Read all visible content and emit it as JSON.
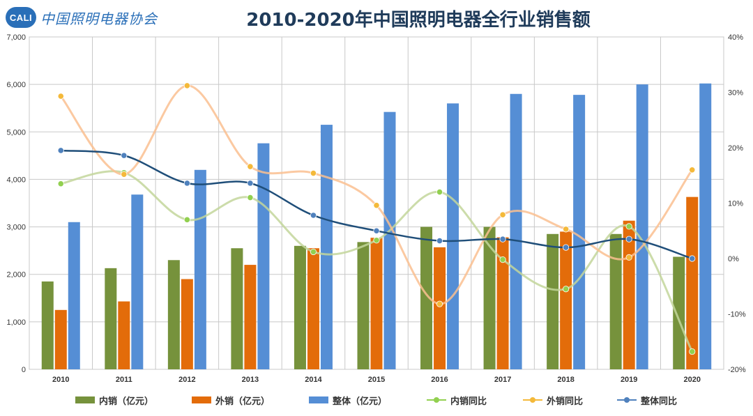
{
  "header": {
    "logo_badge": "CALI",
    "logo_text": "中国照明电器协会",
    "title": "2010-2020年中国照明电器全行业销售额"
  },
  "chart_data": {
    "type": "bar",
    "title": "2010-2020年中国照明电器全行业销售额",
    "categories": [
      "2010",
      "2011",
      "2012",
      "2013",
      "2014",
      "2015",
      "2016",
      "2017",
      "2018",
      "2019",
      "2020"
    ],
    "y_left": {
      "min": 0,
      "max": 7000,
      "ticks": [
        0,
        1000,
        2000,
        3000,
        4000,
        5000,
        6000,
        7000
      ],
      "tick_labels": [
        "0",
        "1,000",
        "2,000",
        "3,000",
        "4,000",
        "5,000",
        "6,000",
        "7,000"
      ]
    },
    "y_right": {
      "min": -20,
      "max": 40,
      "ticks": [
        -20,
        -10,
        0,
        10,
        20,
        30,
        40
      ],
      "tick_labels": [
        "-20%",
        "-10%",
        "0%",
        "10%",
        "20%",
        "30%",
        "40%"
      ]
    },
    "grid": true,
    "legend_position": "bottom",
    "bar_series": [
      {
        "name": "内销（亿元）",
        "color": "#76923c",
        "values": [
          1850,
          2130,
          2300,
          2550,
          2600,
          2680,
          3000,
          3000,
          2850,
          2850,
          2370
        ]
      },
      {
        "name": "外销（亿元）",
        "color": "#e36c0a",
        "values": [
          1250,
          1430,
          1900,
          2200,
          2550,
          2770,
          2570,
          2780,
          2900,
          3130,
          3630
        ]
      },
      {
        "name": "整体（亿元）",
        "color": "#558ed5",
        "values": [
          3100,
          3680,
          4200,
          4760,
          5150,
          5420,
          5600,
          5800,
          5780,
          6000,
          6020
        ]
      }
    ],
    "line_series": [
      {
        "name": "内销同比",
        "color": "#92d050",
        "line_color": "#c3d69b",
        "values": [
          13.5,
          15.5,
          7.0,
          11.0,
          1.2,
          3.3,
          12.0,
          -0.2,
          -5.5,
          5.8,
          -16.8
        ]
      },
      {
        "name": "外销同比",
        "color": "#f4b93a",
        "line_color": "#fac090",
        "values": [
          29.3,
          15.2,
          31.2,
          16.6,
          15.4,
          9.6,
          -8.2,
          7.9,
          5.3,
          0.2,
          16.0
        ]
      },
      {
        "name": "整体同比",
        "color": "#4f81bd",
        "line_color": "#1f4e79",
        "values": [
          19.5,
          18.6,
          13.6,
          13.6,
          7.8,
          5.0,
          3.2,
          3.5,
          2.0,
          3.5,
          0.0
        ]
      }
    ]
  }
}
